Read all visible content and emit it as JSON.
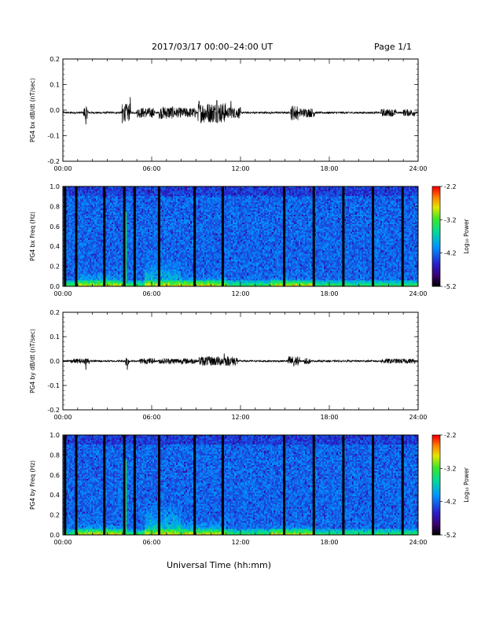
{
  "header": {
    "title": "2017/03/17  00:00–24:00 UT",
    "page": "Page 1/1"
  },
  "footer": {
    "xaxis_title": "Universal Time (hh:mm)"
  },
  "chart_data": [
    {
      "id": "bx-dbdt",
      "type": "line",
      "ylabel": "PG4 bx dB/dt (nT/sec)",
      "xlim": [
        0,
        24
      ],
      "ylim": [
        -0.2,
        0.2
      ],
      "xticks": [
        "00:00",
        "06:00",
        "12:00",
        "18:00",
        "24:00"
      ],
      "yticks": [
        "0.2",
        "0.1",
        "0.0",
        "-0.1",
        "-0.2"
      ],
      "baseline": -0.01,
      "color": "#000000",
      "bursts": [
        [
          1.4,
          1.7,
          0.025
        ],
        [
          4.0,
          4.6,
          0.035
        ],
        [
          5.0,
          6.2,
          0.02
        ],
        [
          6.5,
          7.5,
          0.025
        ],
        [
          7.5,
          9.0,
          0.02
        ],
        [
          9.1,
          9.3,
          0.035
        ],
        [
          9.3,
          11.0,
          0.04
        ],
        [
          11.0,
          12.0,
          0.022
        ],
        [
          15.4,
          15.9,
          0.03
        ],
        [
          16.0,
          17.0,
          0.018
        ],
        [
          21.5,
          22.5,
          0.015
        ],
        [
          23.0,
          23.8,
          0.014
        ]
      ],
      "spikes": [
        [
          1.55,
          -0.055
        ],
        [
          4.02,
          -0.05
        ],
        [
          4.55,
          0.05
        ],
        [
          9.2,
          0.035
        ],
        [
          10.4,
          0.038
        ],
        [
          11.35,
          0.035
        ]
      ]
    },
    {
      "id": "bx-freq",
      "type": "heatmap",
      "ylabel": "PG4 bx Freq (Hz)",
      "xlim": [
        0,
        24
      ],
      "ylim": [
        0.0,
        1.0
      ],
      "xticks": [
        "00:00",
        "06:00",
        "12:00",
        "18:00",
        "24:00"
      ],
      "yticks": [
        "1.0",
        "0.8",
        "0.6",
        "0.4",
        "0.2",
        "0.0"
      ],
      "colorbar": {
        "label": "Log₁₀ Power",
        "ticks": [
          "-2.2",
          "-3.2",
          "-4.2",
          "-5.2"
        ],
        "range": [
          -5.2,
          -2.2
        ]
      },
      "gaps": [
        0.15,
        0.9,
        2.8,
        4.15,
        4.85,
        6.5,
        8.9,
        10.8,
        14.95,
        16.95,
        18.95,
        20.95,
        22.95
      ],
      "bright_lines": [
        4.12,
        4.25
      ],
      "enhancements": [
        [
          1.0,
          4.0,
          0.15
        ],
        [
          5.5,
          8.0,
          0.25
        ],
        [
          8.0,
          11.0,
          0.12
        ],
        [
          14.0,
          17.0,
          0.1
        ]
      ]
    },
    {
      "id": "by-dbdt",
      "type": "line",
      "ylabel": "PG4 by dB/dt (nT/sec)",
      "xlim": [
        0,
        24
      ],
      "ylim": [
        -0.2,
        0.2
      ],
      "xticks": [
        "00:00",
        "06:00",
        "12:00",
        "18:00",
        "24:00"
      ],
      "yticks": [
        "0.2",
        "0.1",
        "0.0",
        "-0.1",
        "-0.2"
      ],
      "baseline": 0.0,
      "color": "#000000",
      "bursts": [
        [
          0.5,
          1.5,
          0.01
        ],
        [
          1.5,
          1.8,
          0.015
        ],
        [
          4.2,
          4.5,
          0.02
        ],
        [
          5.2,
          6.2,
          0.012
        ],
        [
          6.5,
          9.0,
          0.012
        ],
        [
          9.2,
          11.8,
          0.02
        ],
        [
          15.2,
          16.0,
          0.02
        ],
        [
          16.3,
          16.7,
          0.012
        ],
        [
          21.5,
          23.8,
          0.01
        ]
      ],
      "spikes": [
        [
          1.55,
          -0.035
        ],
        [
          4.35,
          -0.035
        ],
        [
          10.9,
          0.03
        ],
        [
          15.6,
          -0.02
        ]
      ]
    },
    {
      "id": "by-freq",
      "type": "heatmap",
      "ylabel": "PG4 by Freq (Hz)",
      "xlim": [
        0,
        24
      ],
      "ylim": [
        0.0,
        1.0
      ],
      "xticks": [
        "00:00",
        "06:00",
        "12:00",
        "18:00",
        "24:00"
      ],
      "yticks": [
        "1.0",
        "0.8",
        "0.6",
        "0.4",
        "0.2",
        "0.0"
      ],
      "colorbar": {
        "label": "Log₁₀ Power",
        "ticks": [
          "-2.2",
          "-3.2",
          "-4.2",
          "-5.2"
        ],
        "range": [
          -5.2,
          -2.2
        ]
      },
      "gaps": [
        0.15,
        0.9,
        2.8,
        4.15,
        4.85,
        6.5,
        8.9,
        10.8,
        14.95,
        16.95,
        18.95,
        20.95,
        22.95
      ],
      "bright_lines": [
        4.12,
        4.25
      ],
      "enhancements": [
        [
          1.0,
          4.0,
          0.12
        ],
        [
          5.5,
          8.0,
          0.3
        ],
        [
          8.0,
          11.0,
          0.15
        ],
        [
          14.0,
          17.0,
          0.1
        ]
      ]
    }
  ]
}
